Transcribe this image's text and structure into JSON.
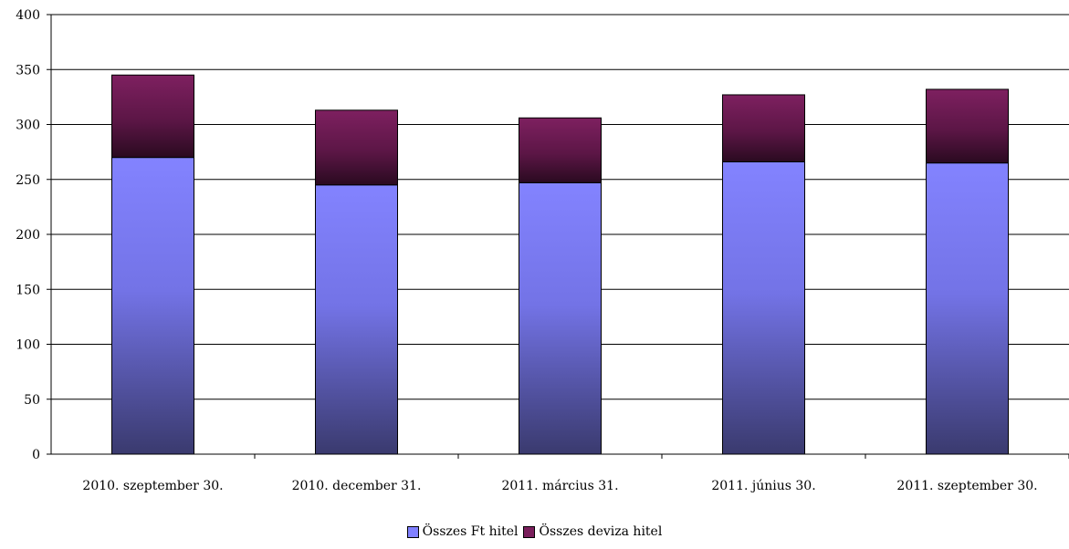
{
  "chart_data": {
    "type": "bar",
    "stacked": true,
    "categories": [
      "2010. szeptember 30.",
      "2010. december 31.",
      "2011. március 31.",
      "2011. június 30.",
      "2011. szeptember 30."
    ],
    "series": [
      {
        "name": "Összes Ft hitel",
        "values": [
          270,
          245,
          247,
          266,
          265
        ],
        "color": "#8080ff"
      },
      {
        "name": "Összes deviza hitel",
        "values": [
          75,
          68,
          59,
          61,
          67
        ],
        "color": "#7a1f5c"
      }
    ],
    "title": "",
    "xlabel": "",
    "ylabel": "",
    "ylim": [
      0,
      400
    ],
    "yticks": [
      0,
      50,
      100,
      150,
      200,
      250,
      300,
      350,
      400
    ],
    "grid": true,
    "legend_position": "bottom"
  }
}
